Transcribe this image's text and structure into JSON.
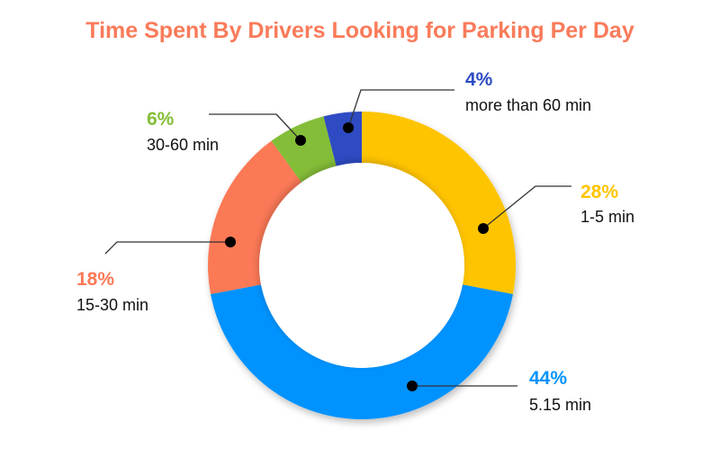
{
  "chart_data": {
    "type": "pie",
    "donut": true,
    "title": "Time Spent By Drivers Looking for Parking Per Day",
    "title_color": "#F97B5A",
    "slices": [
      {
        "label": "1-5 min",
        "value": 28,
        "display": "28%",
        "color": "#FFC400"
      },
      {
        "label": "5.15 min",
        "value": 44,
        "display": "44%",
        "color": "#0093FF"
      },
      {
        "label": "15-30 min",
        "value": 18,
        "display": "18%",
        "color": "#FC7956"
      },
      {
        "label": "30-60 min",
        "value": 6,
        "display": "6%",
        "color": "#84BE37"
      },
      {
        "label": "more than 60 min",
        "value": 4,
        "display": "4%",
        "color": "#2D4BC4"
      }
    ],
    "start": "top",
    "direction": "clockwise"
  }
}
